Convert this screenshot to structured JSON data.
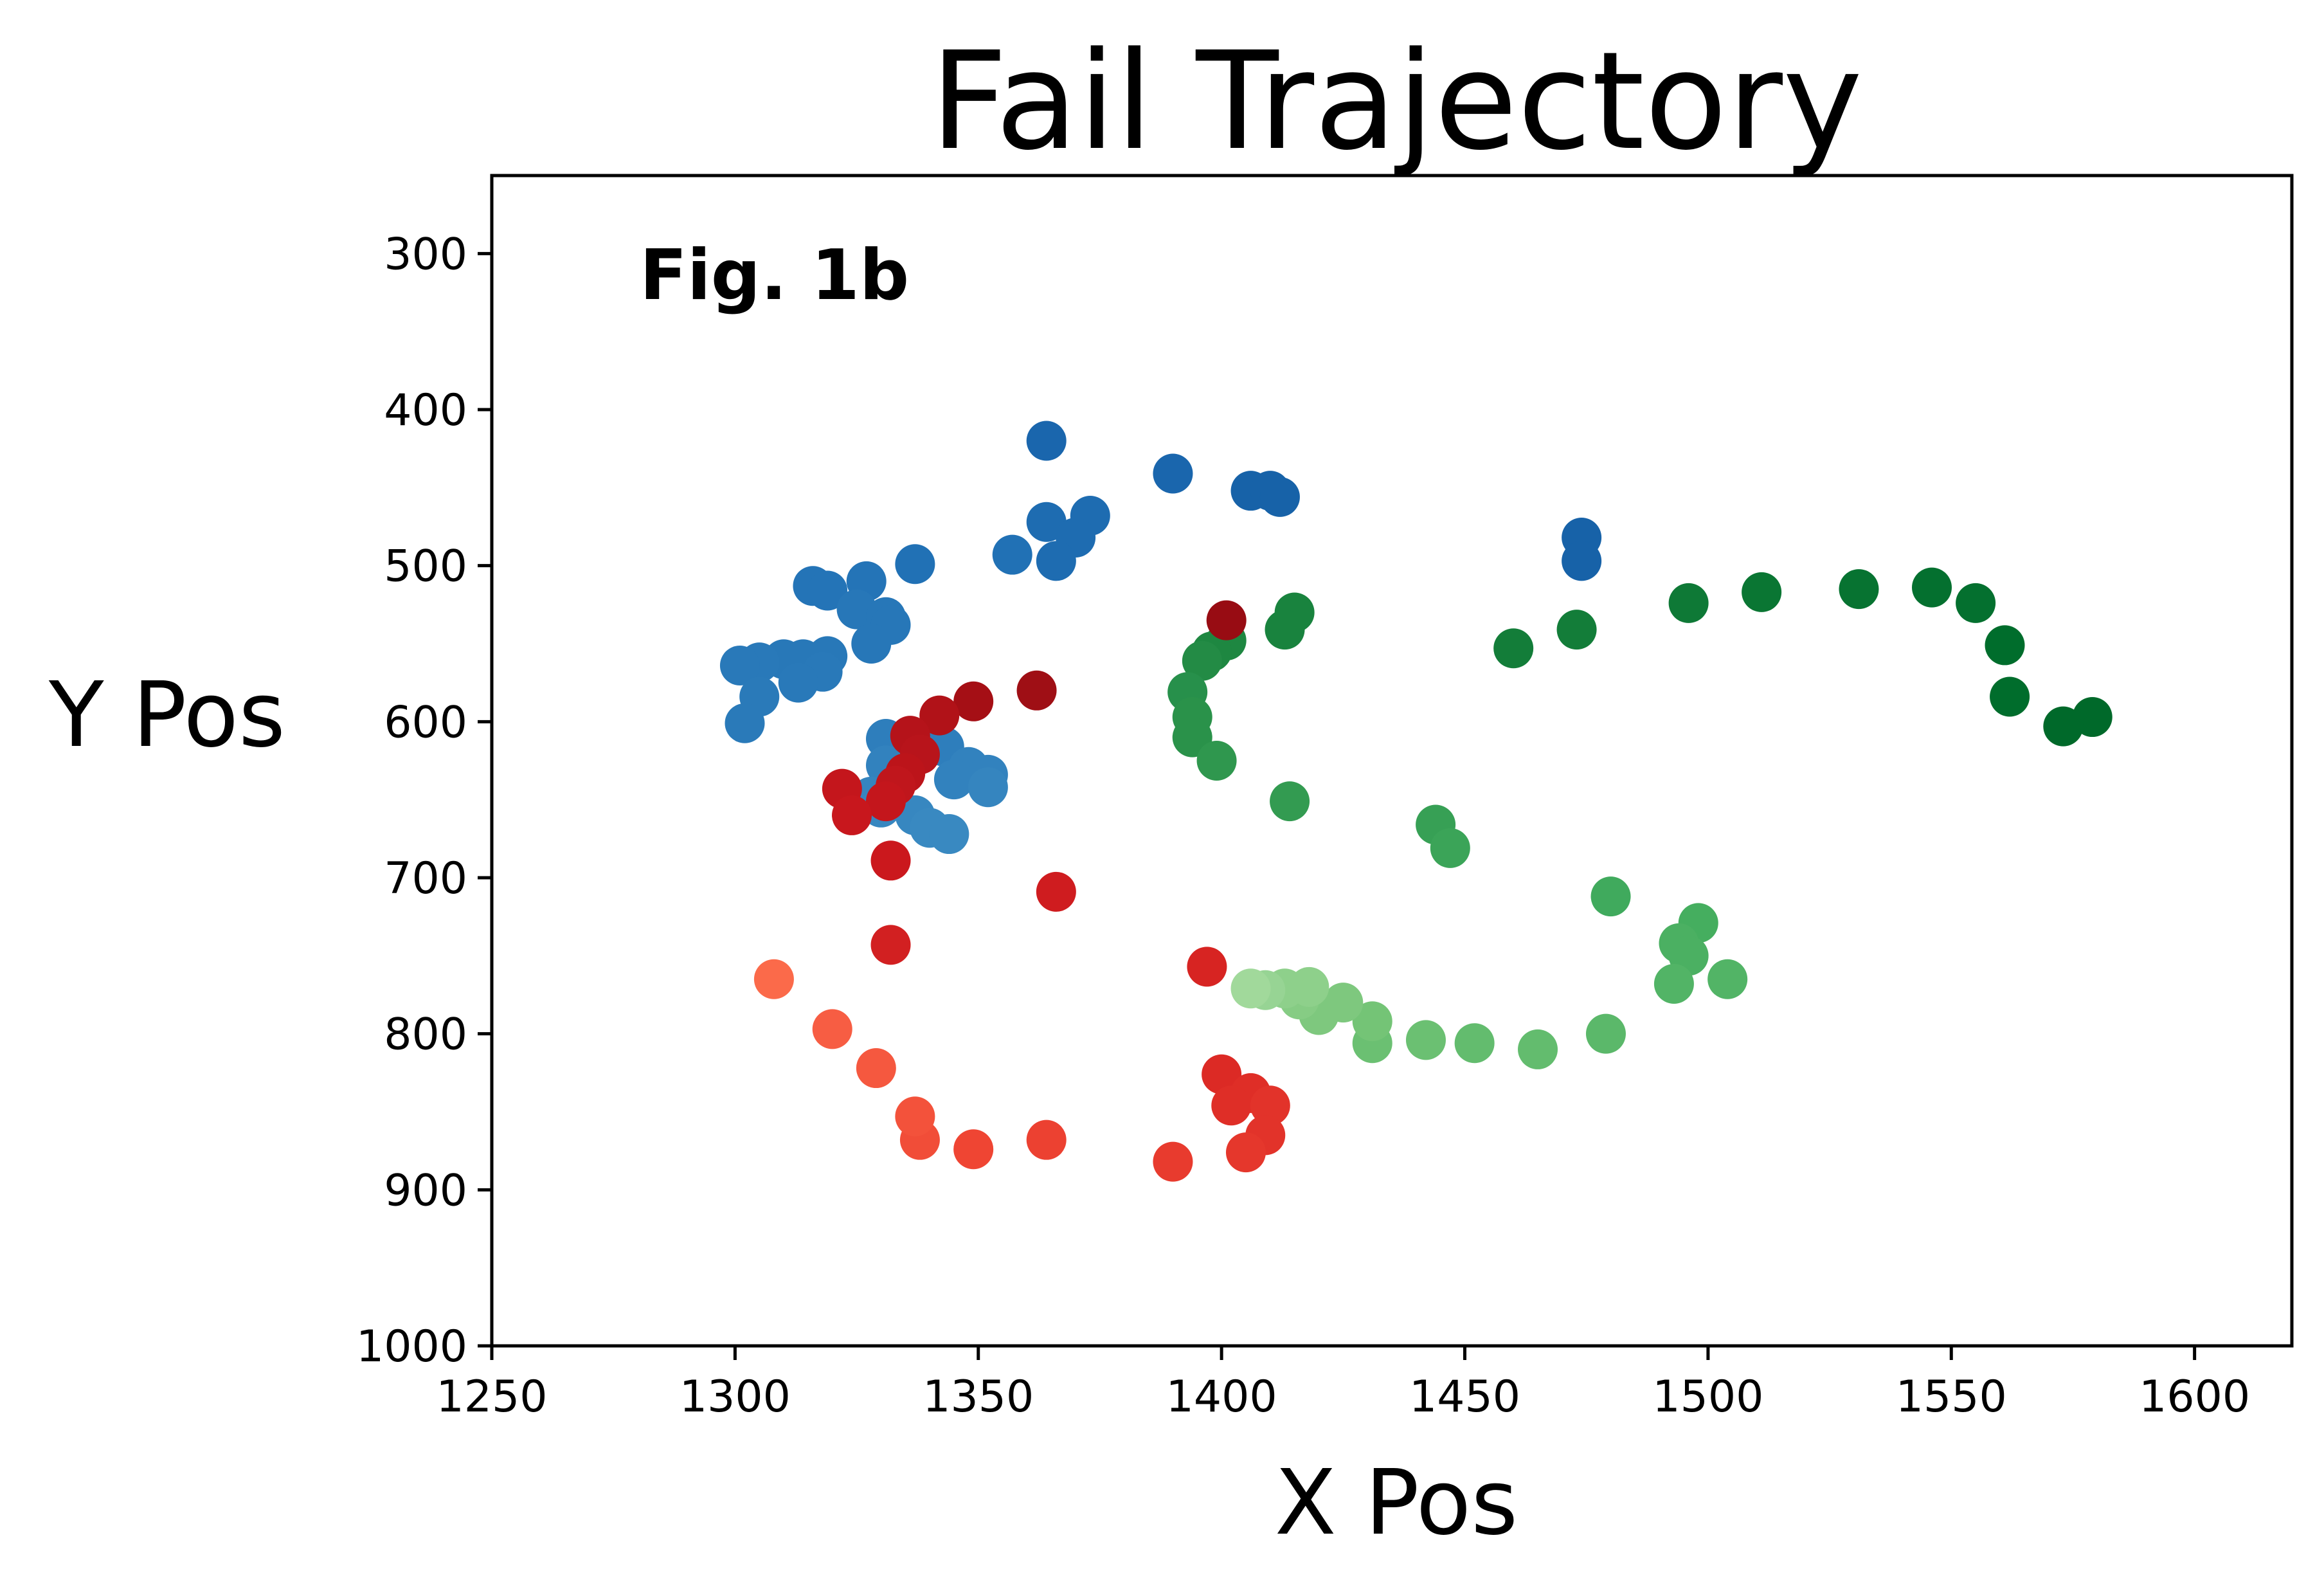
{
  "chart_data": {
    "type": "scatter",
    "title": "Fail Trajectory",
    "xlabel": "X Pos",
    "ylabel": "Y Pos",
    "annotation": "Fig. 1b",
    "xlim": [
      1250,
      1620
    ],
    "ylim": [
      1000,
      250
    ],
    "y_inverted": true,
    "grid": false,
    "xticks": [
      1250,
      1300,
      1350,
      1400,
      1450,
      1500,
      1550,
      1600
    ],
    "yticks": [
      300,
      400,
      500,
      600,
      700,
      800,
      900,
      1000
    ],
    "series": [
      {
        "color_scale": "blues",
        "points": [
          {
            "x": 1364,
            "y": 420,
            "color": "#1a66ad"
          },
          {
            "x": 1390,
            "y": 441,
            "color": "#1a66ad"
          },
          {
            "x": 1406,
            "y": 452,
            "color": "#1762a8"
          },
          {
            "x": 1410,
            "y": 452,
            "color": "#1762a8"
          },
          {
            "x": 1412,
            "y": 456,
            "color": "#1762a8"
          },
          {
            "x": 1474,
            "y": 482,
            "color": "#1762a8"
          },
          {
            "x": 1474,
            "y": 497,
            "color": "#1762a8"
          },
          {
            "x": 1373,
            "y": 468,
            "color": "#1e6cb1"
          },
          {
            "x": 1364,
            "y": 472,
            "color": "#1e6cb1"
          },
          {
            "x": 1370,
            "y": 482,
            "color": "#1e6cb1"
          },
          {
            "x": 1366,
            "y": 497,
            "color": "#1e6cb1"
          },
          {
            "x": 1357,
            "y": 493,
            "color": "#2171b5"
          },
          {
            "x": 1337,
            "y": 499,
            "color": "#2171b5"
          },
          {
            "x": 1327,
            "y": 510,
            "color": "#2474b7"
          },
          {
            "x": 1316,
            "y": 513,
            "color": "#2474b7"
          },
          {
            "x": 1319,
            "y": 516,
            "color": "#2474b7"
          },
          {
            "x": 1325,
            "y": 528,
            "color": "#2777b8"
          },
          {
            "x": 1331,
            "y": 533,
            "color": "#2777b8"
          },
          {
            "x": 1332,
            "y": 538,
            "color": "#2777b8"
          },
          {
            "x": 1328,
            "y": 550,
            "color": "#2777b8"
          },
          {
            "x": 1319,
            "y": 558,
            "color": "#2878b8"
          },
          {
            "x": 1314,
            "y": 560,
            "color": "#2878b8"
          },
          {
            "x": 1310,
            "y": 560,
            "color": "#2878b8"
          },
          {
            "x": 1305,
            "y": 562,
            "color": "#2979b9"
          },
          {
            "x": 1301,
            "y": 564,
            "color": "#2979b9"
          },
          {
            "x": 1318,
            "y": 568,
            "color": "#2979b9"
          },
          {
            "x": 1313,
            "y": 575,
            "color": "#2979b9"
          },
          {
            "x": 1305,
            "y": 584,
            "color": "#2a7ab9"
          },
          {
            "x": 1302,
            "y": 601,
            "color": "#2a7ab9"
          },
          {
            "x": 1331,
            "y": 611,
            "color": "#2e7ebc"
          },
          {
            "x": 1343,
            "y": 616,
            "color": "#2e7ebc"
          },
          {
            "x": 1331,
            "y": 628,
            "color": "#3282be"
          },
          {
            "x": 1348,
            "y": 629,
            "color": "#3282be"
          },
          {
            "x": 1352,
            "y": 634,
            "color": "#3282be"
          },
          {
            "x": 1345,
            "y": 637,
            "color": "#3282be"
          },
          {
            "x": 1352,
            "y": 642,
            "color": "#3585bf"
          },
          {
            "x": 1328,
            "y": 648,
            "color": "#3585bf"
          },
          {
            "x": 1330,
            "y": 655,
            "color": "#3787c0"
          },
          {
            "x": 1337,
            "y": 660,
            "color": "#3787c0"
          },
          {
            "x": 1340,
            "y": 668,
            "color": "#3989c1"
          },
          {
            "x": 1344,
            "y": 672,
            "color": "#3989c1"
          }
        ]
      },
      {
        "color_scale": "greens",
        "points": [
          {
            "x": 1579,
            "y": 597,
            "color": "#00692a"
          },
          {
            "x": 1573,
            "y": 603,
            "color": "#00692a"
          },
          {
            "x": 1562,
            "y": 584,
            "color": "#006d2c"
          },
          {
            "x": 1561,
            "y": 551,
            "color": "#006d2c"
          },
          {
            "x": 1555,
            "y": 524,
            "color": "#04702f"
          },
          {
            "x": 1546,
            "y": 514,
            "color": "#04702f"
          },
          {
            "x": 1531,
            "y": 515,
            "color": "#077331"
          },
          {
            "x": 1511,
            "y": 517,
            "color": "#0a7633"
          },
          {
            "x": 1496,
            "y": 524,
            "color": "#0e7936"
          },
          {
            "x": 1473,
            "y": 541,
            "color": "#137d39"
          },
          {
            "x": 1460,
            "y": 553,
            "color": "#137d39"
          },
          {
            "x": 1415,
            "y": 530,
            "color": "#19833e"
          },
          {
            "x": 1413,
            "y": 541,
            "color": "#19833e"
          },
          {
            "x": 1401,
            "y": 548,
            "color": "#1e8741"
          },
          {
            "x": 1398,
            "y": 555,
            "color": "#1e8741"
          },
          {
            "x": 1396,
            "y": 561,
            "color": "#238b45"
          },
          {
            "x": 1393,
            "y": 581,
            "color": "#27904b"
          },
          {
            "x": 1394,
            "y": 597,
            "color": "#2a924a"
          },
          {
            "x": 1394,
            "y": 610,
            "color": "#2a924a"
          },
          {
            "x": 1399,
            "y": 625,
            "color": "#2f974e"
          },
          {
            "x": 1414,
            "y": 651,
            "color": "#339b51"
          },
          {
            "x": 1444,
            "y": 666,
            "color": "#37a055"
          },
          {
            "x": 1447,
            "y": 681,
            "color": "#3ba458"
          },
          {
            "x": 1480,
            "y": 712,
            "color": "#40aa5d"
          },
          {
            "x": 1498,
            "y": 729,
            "color": "#45ae5f"
          },
          {
            "x": 1494,
            "y": 742,
            "color": "#4bb062"
          },
          {
            "x": 1496,
            "y": 750,
            "color": "#4bb062"
          },
          {
            "x": 1504,
            "y": 765,
            "color": "#52b466"
          },
          {
            "x": 1493,
            "y": 768,
            "color": "#52b466"
          },
          {
            "x": 1479,
            "y": 800,
            "color": "#5bb86a"
          },
          {
            "x": 1465,
            "y": 810,
            "color": "#63bc6e"
          },
          {
            "x": 1452,
            "y": 806,
            "color": "#63bc6e"
          },
          {
            "x": 1442,
            "y": 804,
            "color": "#6bc072"
          },
          {
            "x": 1431,
            "y": 806,
            "color": "#6bc072"
          },
          {
            "x": 1431,
            "y": 792,
            "color": "#74c476"
          },
          {
            "x": 1425,
            "y": 780,
            "color": "#7ec87e"
          },
          {
            "x": 1420,
            "y": 788,
            "color": "#7ec87e"
          },
          {
            "x": 1416,
            "y": 778,
            "color": "#86cc84"
          },
          {
            "x": 1418,
            "y": 770,
            "color": "#8ed08b"
          },
          {
            "x": 1413,
            "y": 771,
            "color": "#8ed08b"
          },
          {
            "x": 1409,
            "y": 772,
            "color": "#97d494"
          },
          {
            "x": 1406,
            "y": 771,
            "color": "#a1d99b"
          }
        ]
      },
      {
        "color_scale": "reds",
        "points": [
          {
            "x": 1401,
            "y": 535,
            "color": "#980c13"
          },
          {
            "x": 1362,
            "y": 580,
            "color": "#9f0f15"
          },
          {
            "x": 1349,
            "y": 587,
            "color": "#a50f15"
          },
          {
            "x": 1342,
            "y": 596,
            "color": "#b11218"
          },
          {
            "x": 1336,
            "y": 609,
            "color": "#b5131a"
          },
          {
            "x": 1338,
            "y": 621,
            "color": "#b8141b"
          },
          {
            "x": 1335,
            "y": 633,
            "color": "#bc141a"
          },
          {
            "x": 1333,
            "y": 641,
            "color": "#c0161c"
          },
          {
            "x": 1331,
            "y": 651,
            "color": "#c4161c"
          },
          {
            "x": 1322,
            "y": 643,
            "color": "#c4161c"
          },
          {
            "x": 1324,
            "y": 660,
            "color": "#c8171d"
          },
          {
            "x": 1332,
            "y": 689,
            "color": "#cb181d"
          },
          {
            "x": 1366,
            "y": 709,
            "color": "#cf1c1f"
          },
          {
            "x": 1332,
            "y": 743,
            "color": "#d22021"
          },
          {
            "x": 1397,
            "y": 757,
            "color": "#d72422"
          },
          {
            "x": 1400,
            "y": 826,
            "color": "#dc2a25"
          },
          {
            "x": 1406,
            "y": 838,
            "color": "#df2e27"
          },
          {
            "x": 1402,
            "y": 846,
            "color": "#df2e27"
          },
          {
            "x": 1410,
            "y": 846,
            "color": "#e2332a"
          },
          {
            "x": 1409,
            "y": 865,
            "color": "#e2332a"
          },
          {
            "x": 1405,
            "y": 876,
            "color": "#e5372c"
          },
          {
            "x": 1390,
            "y": 882,
            "color": "#e83b2e"
          },
          {
            "x": 1364,
            "y": 868,
            "color": "#ec4131"
          },
          {
            "x": 1349,
            "y": 874,
            "color": "#ef4533"
          },
          {
            "x": 1338,
            "y": 868,
            "color": "#f14d38"
          },
          {
            "x": 1337,
            "y": 853,
            "color": "#f3523b"
          },
          {
            "x": 1329,
            "y": 822,
            "color": "#f5583f"
          },
          {
            "x": 1320,
            "y": 797,
            "color": "#f75d43"
          },
          {
            "x": 1308,
            "y": 765,
            "color": "#fb6a4a"
          }
        ]
      }
    ]
  }
}
